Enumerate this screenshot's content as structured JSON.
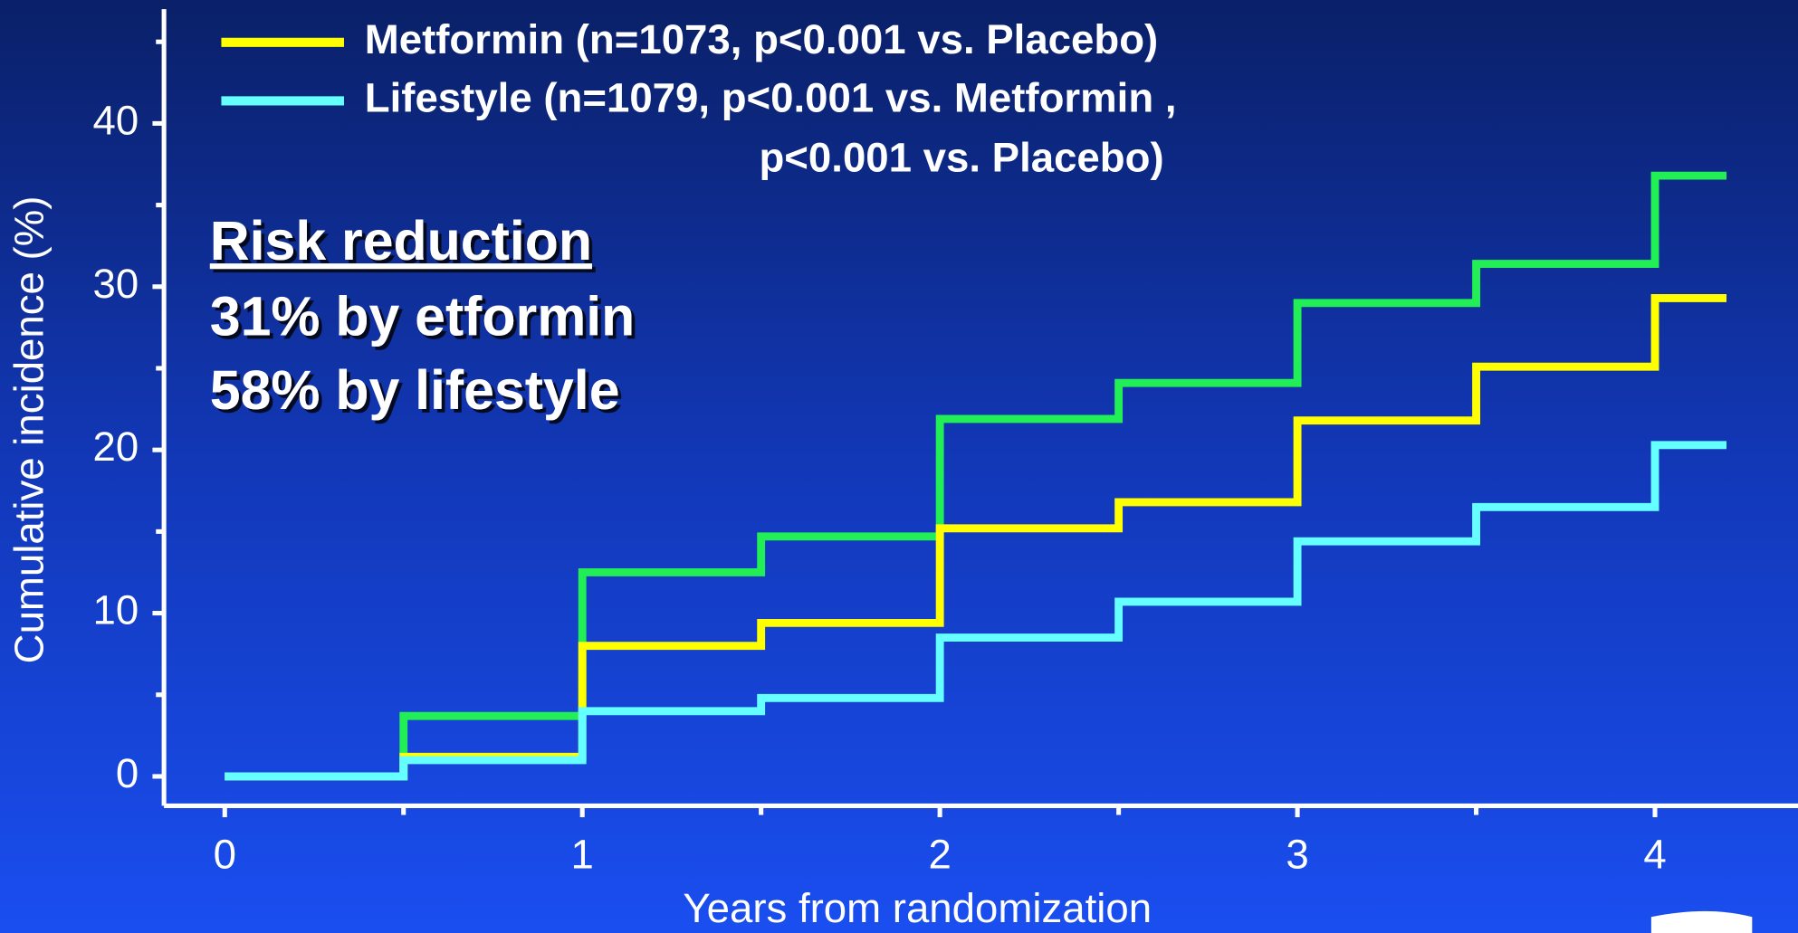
{
  "chart_data": {
    "type": "step",
    "x_label": "Years from randomization",
    "y_label": "Cumulative incidence (%)",
    "x": [
      0,
      0.5,
      1,
      1.5,
      2,
      2.5,
      3,
      3.5,
      4,
      4.2
    ],
    "series": [
      {
        "color": "#22ee55",
        "values": [
          0,
          3.7,
          12.5,
          14.7,
          21.9,
          24.1,
          29,
          31.4,
          36.8,
          36.8
        ]
      },
      {
        "name": "Metformin (n=1073, p<0.001 vs. Placebo)",
        "color": "#ffff00",
        "values": [
          0,
          1.2,
          8,
          9.4,
          15.2,
          16.8,
          21.8,
          25.1,
          29.3,
          29.3
        ]
      },
      {
        "name": "Lifestyle (n=1079, p<0.001 vs. Metformin , p<0.001 vs. Placebo)",
        "color": "#66ffff",
        "values": [
          0,
          1,
          4,
          4.8,
          8.5,
          10.7,
          14.4,
          16.5,
          20.3,
          20.3
        ]
      }
    ],
    "xlim": [
      -0.17,
      4.4
    ],
    "ylim": [
      -1.8,
      47
    ],
    "xticks": [
      0,
      1,
      2,
      3,
      4
    ],
    "xticks_minor": [
      0.5,
      1.5,
      2.5,
      3.5
    ],
    "yticks": [
      0,
      10,
      20,
      30,
      40
    ],
    "yticks_minor": [
      5,
      15,
      25,
      35,
      45
    ],
    "annotations": [
      {
        "text": "Risk reduction",
        "color": "#ffffff"
      },
      {
        "text": "31% by etformin",
        "color": "#ffff00"
      },
      {
        "text": "58% by lifestyle",
        "color": "#66ffff"
      }
    ]
  }
}
